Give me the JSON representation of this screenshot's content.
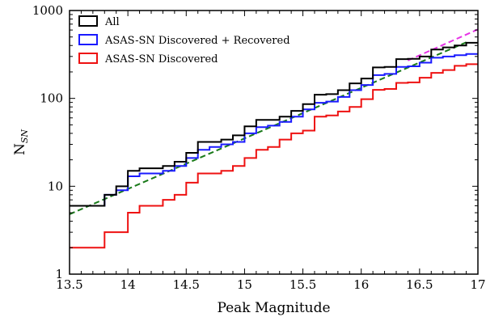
{
  "chart_data": {
    "type": "step-histogram",
    "xlabel": "Peak Magnitude",
    "ylabel": "N",
    "ylabel_sub": "SN",
    "xlim": [
      13.5,
      17.0
    ],
    "ylim": [
      1,
      1000
    ],
    "yscale": "log",
    "xticks": [
      "13.5",
      "14",
      "14.5",
      "15",
      "15.5",
      "16",
      "16.5",
      "17"
    ],
    "xtick_values": [
      13.5,
      14.0,
      14.5,
      15.0,
      15.5,
      16.0,
      16.5,
      17.0
    ],
    "yticks": [
      "1",
      "10",
      "100",
      "1000"
    ],
    "ytick_values": [
      1,
      10,
      100,
      1000
    ],
    "legend_position": "upper-left",
    "bin_edges": [
      13.5,
      13.8,
      13.9,
      14.0,
      14.1,
      14.2,
      14.3,
      14.4,
      14.5,
      14.6,
      14.7,
      14.8,
      14.9,
      15.0,
      15.1,
      15.2,
      15.3,
      15.4,
      15.5,
      15.6,
      15.7,
      15.8,
      15.9,
      16.0,
      16.1,
      16.2,
      16.3,
      16.4,
      16.5,
      16.6,
      16.7,
      16.8,
      16.9,
      17.0
    ],
    "series": [
      {
        "name": "All",
        "color": "#000000",
        "values": [
          6,
          8,
          10,
          15,
          16,
          16,
          17,
          19,
          24,
          32,
          32,
          34,
          38,
          48,
          57,
          57,
          62,
          72,
          86,
          110,
          112,
          124,
          148,
          168,
          225,
          228,
          280,
          282,
          300,
          360,
          380,
          400,
          430
        ]
      },
      {
        "name": "ASAS-SN Discovered + Recovered",
        "color": "#1a1aff",
        "values": [
          6,
          8,
          9,
          13,
          14,
          14,
          15,
          17,
          21,
          26,
          28,
          30,
          32,
          40,
          47,
          49,
          54,
          62,
          75,
          89,
          92,
          104,
          124,
          142,
          184,
          190,
          228,
          232,
          255,
          290,
          300,
          310,
          320
        ]
      },
      {
        "name": "ASAS-SN Discovered",
        "color": "#ee1111",
        "values": [
          2,
          3,
          3,
          5,
          6,
          6,
          7,
          8,
          11,
          14,
          14,
          15,
          17,
          21,
          26,
          28,
          34,
          40,
          43,
          62,
          64,
          71,
          80,
          98,
          125,
          128,
          150,
          152,
          172,
          195,
          210,
          235,
          245
        ]
      }
    ],
    "fit_lines": [
      {
        "style": "dashed",
        "color": "#1a7a1a",
        "x": [
          13.5,
          16.9
        ],
        "y": [
          4.8,
          435
        ]
      },
      {
        "style": "dashed",
        "color": "#e633e6",
        "x": [
          16.4,
          17.0
        ],
        "y": [
          270,
          610
        ]
      }
    ]
  }
}
